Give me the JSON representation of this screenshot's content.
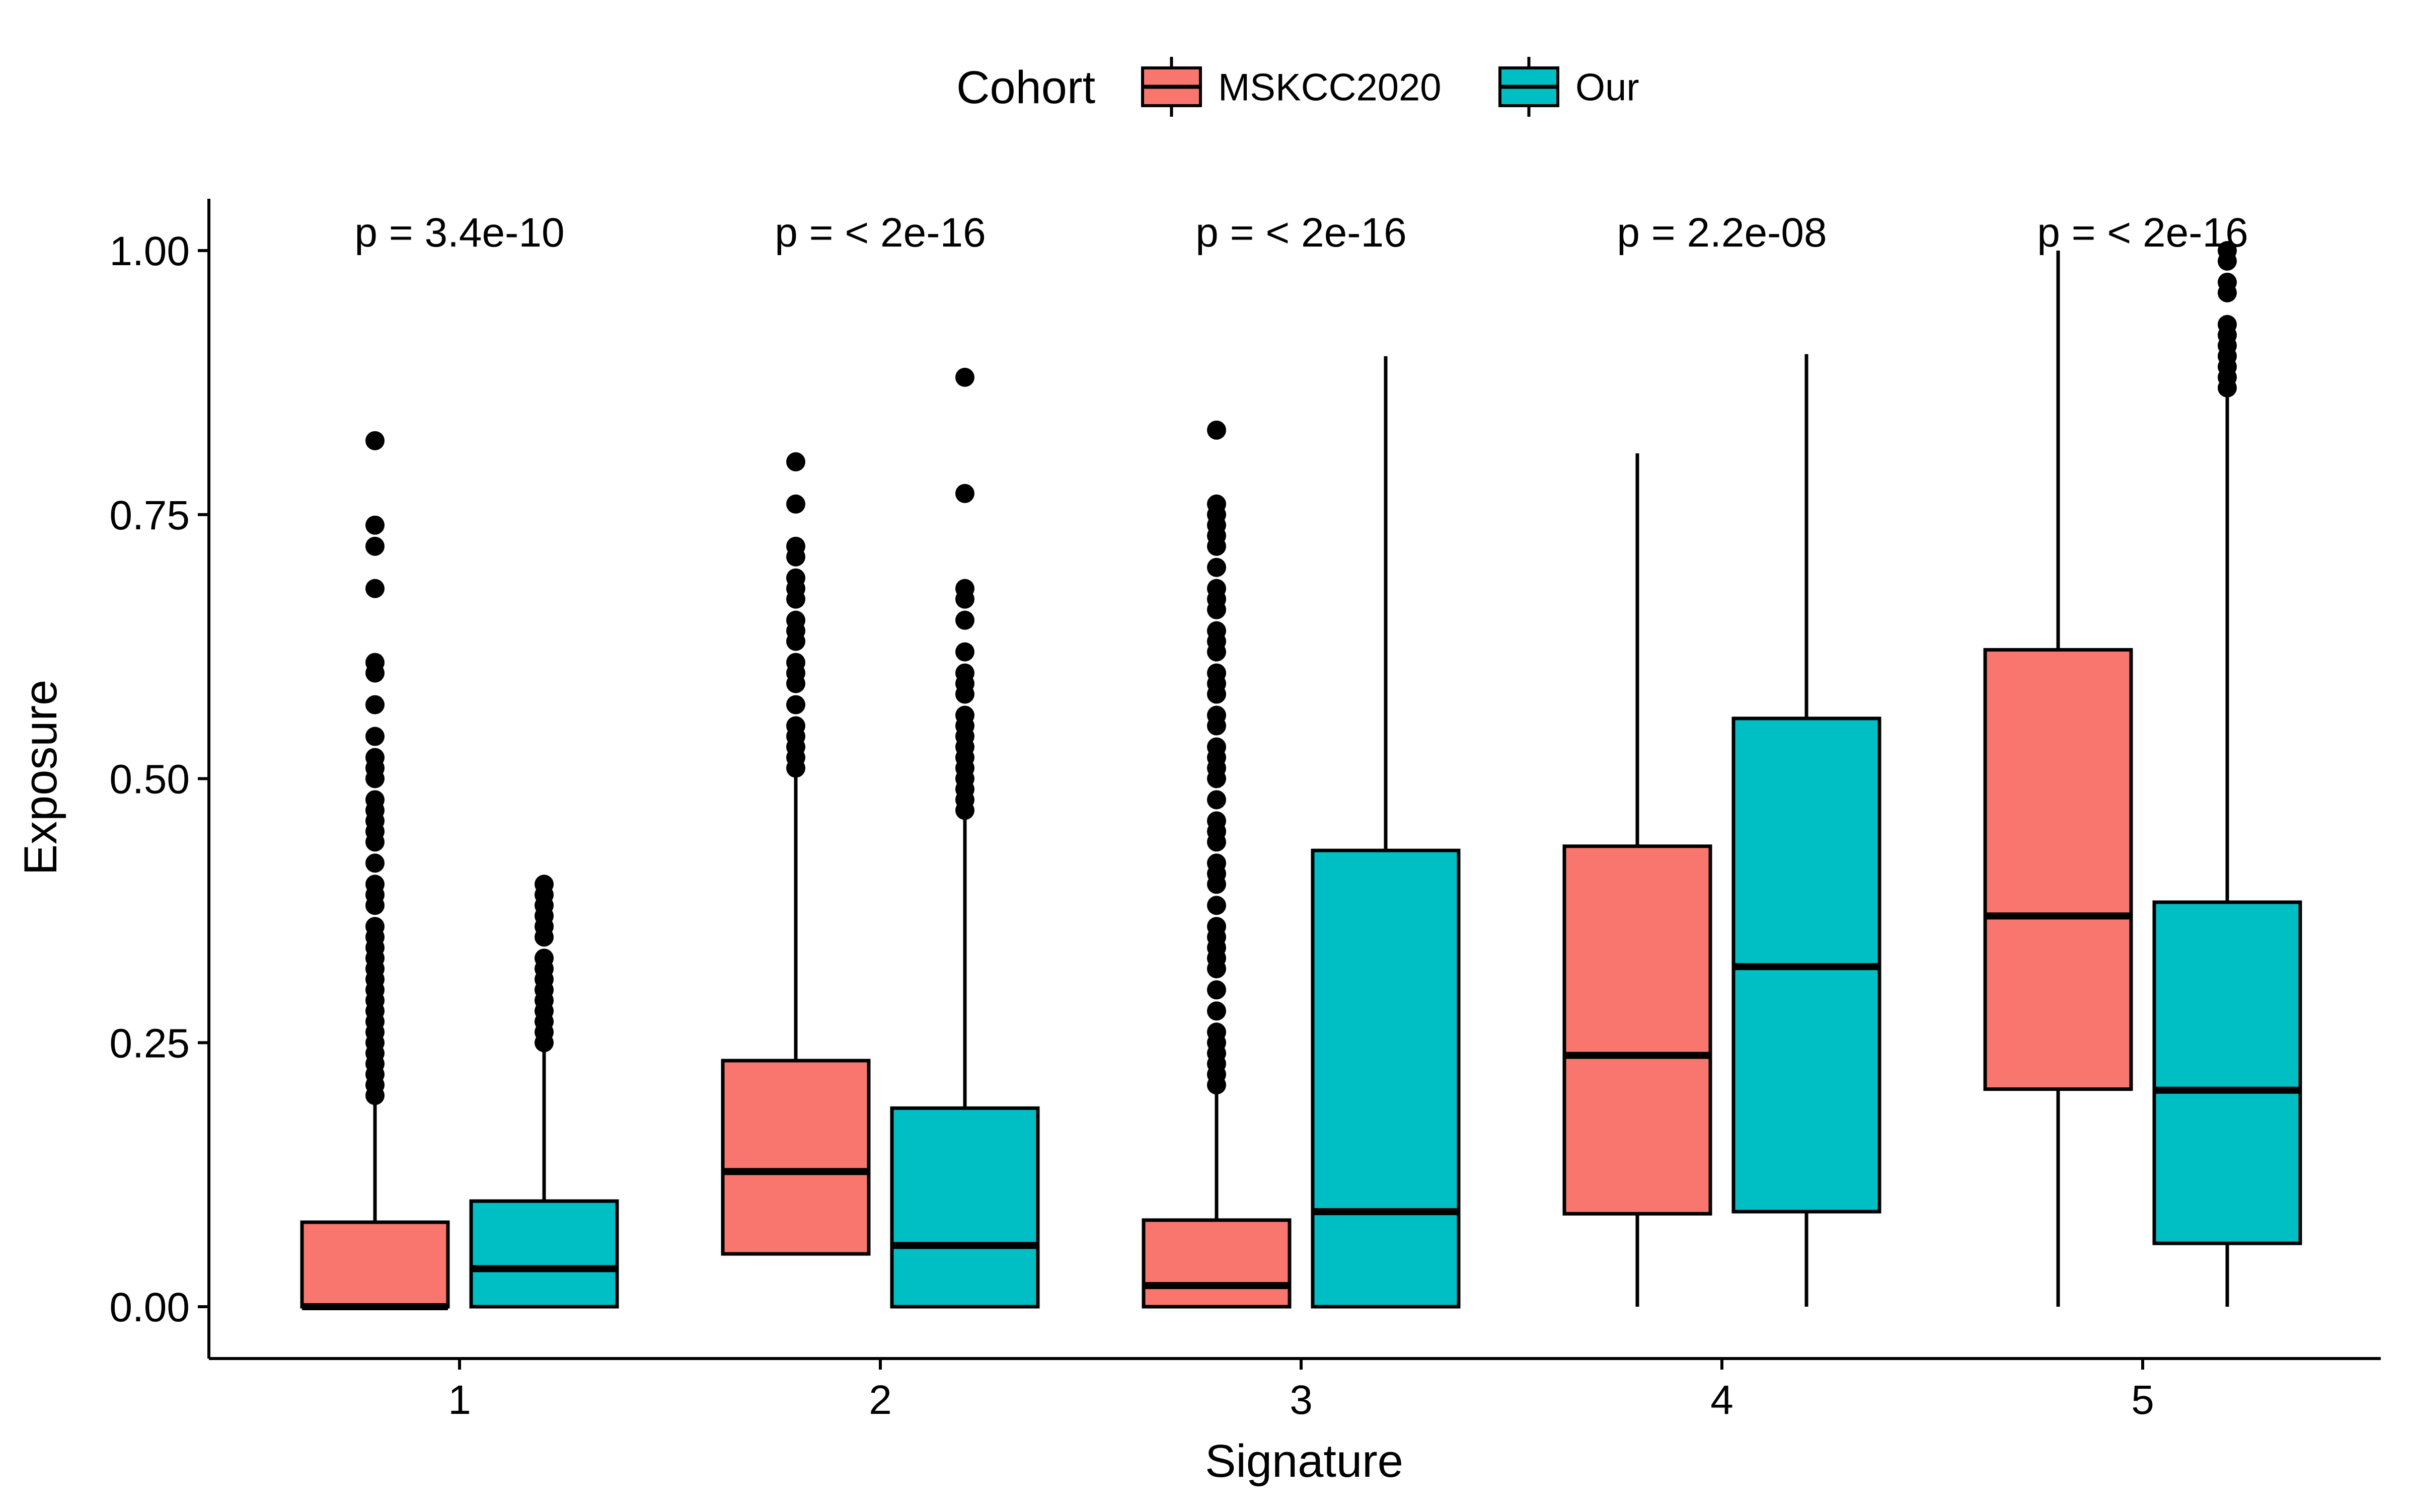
{
  "chart_data": {
    "type": "box",
    "xlabel": "Signature",
    "ylabel": "Exposure",
    "categories": [
      "1",
      "2",
      "3",
      "4",
      "5"
    ],
    "ylim": [
      -0.05,
      1.05
    ],
    "yticks": [
      "0.00",
      "0.25",
      "0.50",
      "0.75",
      "1.00"
    ],
    "ytick_values": [
      0,
      0.25,
      0.5,
      0.75,
      1.0
    ],
    "grid": false,
    "legend": {
      "title": "Cohort",
      "placement": "top",
      "entries": [
        "MSKCC2020",
        "Our"
      ]
    },
    "annotations": [
      "p = 3.4e-10",
      "p = < 2e-16",
      "p = < 2e-16",
      "p = 2.2e-08",
      "p = < 2e-16"
    ],
    "series": [
      {
        "name": "MSKCC2020",
        "color": "#F8766D",
        "boxes": [
          {
            "category": "1",
            "whisker_low": 0.0,
            "q1": 0.0,
            "median": 0.0,
            "q3": 0.08,
            "whisker_high": 0.2,
            "outliers": [
              0.2,
              0.21,
              0.22,
              0.23,
              0.24,
              0.25,
              0.26,
              0.27,
              0.28,
              0.29,
              0.3,
              0.31,
              0.32,
              0.33,
              0.34,
              0.35,
              0.36,
              0.38,
              0.39,
              0.4,
              0.42,
              0.44,
              0.45,
              0.46,
              0.47,
              0.48,
              0.5,
              0.51,
              0.52,
              0.54,
              0.57,
              0.6,
              0.61,
              0.68,
              0.72,
              0.74,
              0.82
            ]
          },
          {
            "category": "2",
            "whisker_low": 0.05,
            "q1": 0.05,
            "median": 0.128,
            "q3": 0.233,
            "whisker_high": 0.505,
            "outliers": [
              0.51,
              0.52,
              0.53,
              0.54,
              0.55,
              0.57,
              0.59,
              0.6,
              0.61,
              0.63,
              0.64,
              0.65,
              0.67,
              0.68,
              0.69,
              0.71,
              0.72,
              0.76,
              0.8
            ]
          },
          {
            "category": "3",
            "whisker_low": 0.0,
            "q1": 0.0,
            "median": 0.02,
            "q3": 0.082,
            "whisker_high": 0.205,
            "outliers": [
              0.21,
              0.22,
              0.23,
              0.24,
              0.25,
              0.26,
              0.28,
              0.3,
              0.32,
              0.33,
              0.34,
              0.35,
              0.36,
              0.38,
              0.4,
              0.41,
              0.42,
              0.44,
              0.45,
              0.46,
              0.48,
              0.5,
              0.51,
              0.52,
              0.53,
              0.55,
              0.56,
              0.58,
              0.59,
              0.6,
              0.62,
              0.63,
              0.64,
              0.66,
              0.67,
              0.68,
              0.7,
              0.72,
              0.73,
              0.74,
              0.75,
              0.76,
              0.83
            ]
          },
          {
            "category": "4",
            "whisker_low": 0.0,
            "q1": 0.088,
            "median": 0.238,
            "q3": 0.436,
            "whisker_high": 0.808,
            "outliers": []
          },
          {
            "category": "5",
            "whisker_low": 0.0,
            "q1": 0.206,
            "median": 0.37,
            "q3": 0.622,
            "whisker_high": 1.0,
            "outliers": []
          }
        ]
      },
      {
        "name": "Our",
        "color": "#00BFC4",
        "boxes": [
          {
            "category": "1",
            "whisker_low": 0.0,
            "q1": 0.0,
            "median": 0.036,
            "q3": 0.1,
            "whisker_high": 0.245,
            "outliers": [
              0.25,
              0.26,
              0.27,
              0.28,
              0.29,
              0.3,
              0.31,
              0.32,
              0.33,
              0.35,
              0.36,
              0.37,
              0.38,
              0.39,
              0.4
            ]
          },
          {
            "category": "2",
            "whisker_low": 0.0,
            "q1": 0.0,
            "median": 0.058,
            "q3": 0.188,
            "whisker_high": 0.47,
            "outliers": [
              0.47,
              0.48,
              0.49,
              0.5,
              0.51,
              0.52,
              0.53,
              0.54,
              0.55,
              0.56,
              0.58,
              0.59,
              0.6,
              0.62,
              0.65,
              0.67,
              0.68,
              0.77,
              0.88
            ]
          },
          {
            "category": "3",
            "whisker_low": 0.0,
            "q1": 0.0,
            "median": 0.09,
            "q3": 0.432,
            "whisker_high": 0.9,
            "outliers": []
          },
          {
            "category": "4",
            "whisker_low": 0.0,
            "q1": 0.09,
            "median": 0.322,
            "q3": 0.557,
            "whisker_high": 0.902,
            "outliers": []
          },
          {
            "category": "5",
            "whisker_low": 0.0,
            "q1": 0.06,
            "median": 0.205,
            "q3": 0.383,
            "whisker_high": 0.87,
            "outliers": [
              0.87,
              0.88,
              0.89,
              0.9,
              0.91,
              0.92,
              0.93,
              0.96,
              0.97,
              0.99,
              1.0
            ]
          }
        ]
      }
    ]
  }
}
